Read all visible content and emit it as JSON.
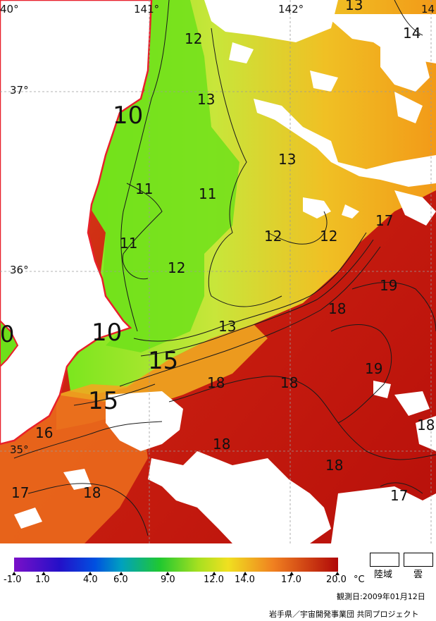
{
  "map": {
    "lon_labels": [
      "40°",
      "141°",
      "142°",
      "14"
    ],
    "lat_labels": [
      "37°",
      "36°",
      "35°"
    ],
    "contour_labels": [
      {
        "text": "12"
      },
      {
        "text": "13"
      },
      {
        "text": "13"
      },
      {
        "text": "14"
      },
      {
        "text": "10"
      },
      {
        "text": "13"
      },
      {
        "text": "11"
      },
      {
        "text": "11"
      },
      {
        "text": "11"
      },
      {
        "text": "12"
      },
      {
        "text": "12"
      },
      {
        "text": "12"
      },
      {
        "text": "17"
      },
      {
        "text": "19"
      },
      {
        "text": "18"
      },
      {
        "text": "13"
      },
      {
        "text": "0"
      },
      {
        "text": "10"
      },
      {
        "text": "15"
      },
      {
        "text": "19"
      },
      {
        "text": "18"
      },
      {
        "text": "18"
      },
      {
        "text": "15"
      },
      {
        "text": "18"
      },
      {
        "text": "16"
      },
      {
        "text": "18"
      },
      {
        "text": "18"
      },
      {
        "text": "17"
      },
      {
        "text": "18"
      }
    ]
  },
  "legend": {
    "ticks": [
      "-1.0",
      "1.0",
      "4.0",
      "6.0",
      "9.0",
      "12.0",
      "14.0",
      "17.0",
      "20.0"
    ],
    "unit": "°C",
    "land_label": "陸域",
    "cloud_label": "雲",
    "date_text": "観測日:2009年01月12日",
    "credit_text": "岩手県／宇宙開発事業団 共同プロジェクト"
  }
}
